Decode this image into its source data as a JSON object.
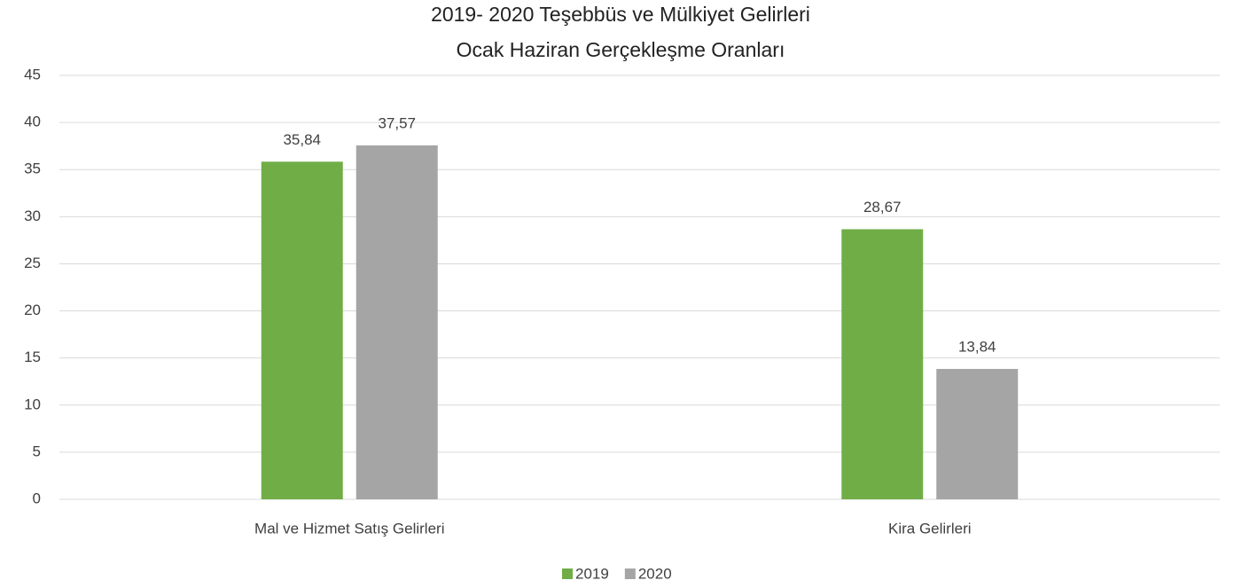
{
  "chart_data": {
    "type": "bar",
    "title": [
      "2019- 2020 Teşebbüs ve Mülkiyet Gelirleri",
      "Ocak Haziran Gerçekleşme Oranları"
    ],
    "categories": [
      "Mal ve Hizmet Satış Gelirleri",
      "Kira Gelirleri"
    ],
    "series": [
      {
        "name": "2019",
        "color": "#70ad47",
        "values": [
          35.84,
          28.67
        ],
        "value_labels": [
          "35,84",
          "28,67"
        ]
      },
      {
        "name": "2020",
        "color": "#a5a5a5",
        "values": [
          37.57,
          13.84
        ],
        "value_labels": [
          "37,57",
          "13,84"
        ]
      }
    ],
    "ylim": [
      0,
      45
    ],
    "yticks": [
      0,
      5,
      10,
      15,
      20,
      25,
      30,
      35,
      40,
      45
    ],
    "grid": true,
    "legend": "bottom"
  }
}
